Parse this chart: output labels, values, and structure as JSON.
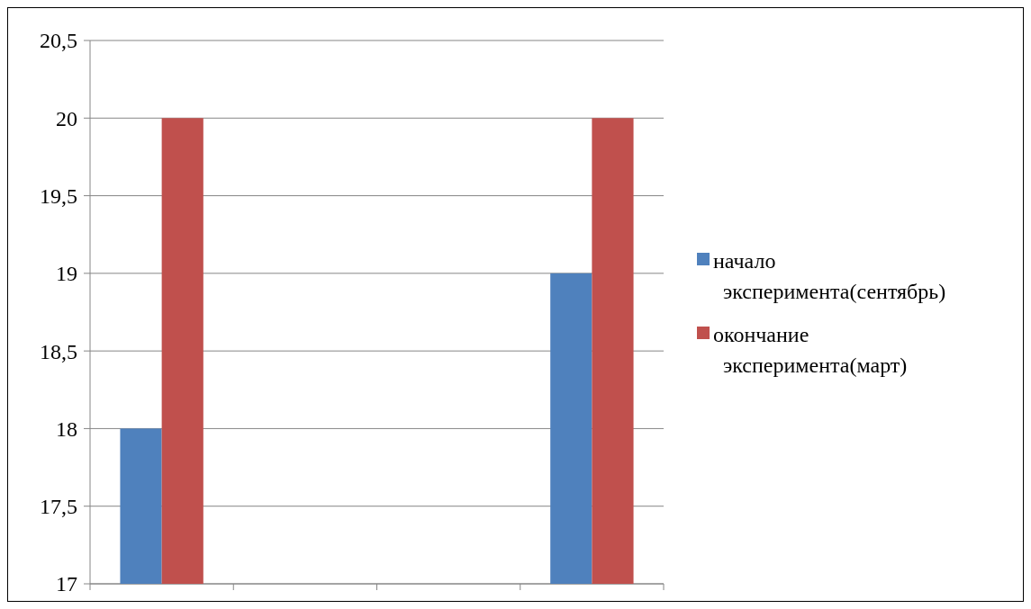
{
  "chart_data": {
    "type": "bar",
    "categories": [
      null,
      null,
      null,
      null
    ],
    "series": [
      {
        "name": "начало эксперимента(сентябрь)",
        "color": "#4f81bd",
        "values": [
          18,
          null,
          null,
          19
        ]
      },
      {
        "name": "окончание эксперимента(март)",
        "color": "#c0504d",
        "values": [
          20,
          null,
          null,
          20
        ]
      }
    ],
    "ylim": [
      17,
      20.5
    ],
    "yticks": [
      17,
      {
        "value": 17.5,
        "label": "17,5"
      },
      18,
      {
        "value": 18.5,
        "label": "18,5"
      },
      19,
      {
        "value": 19.5,
        "label": "19,5"
      },
      20,
      {
        "value": 20.5,
        "label": "20,5"
      }
    ],
    "grid": "y",
    "legend": "right"
  }
}
